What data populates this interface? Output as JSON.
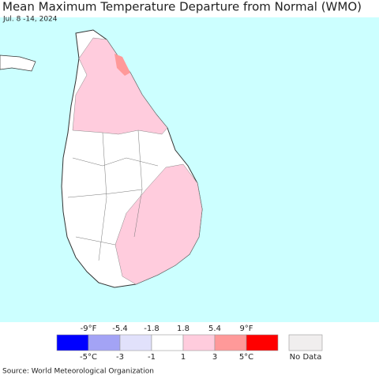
{
  "header": {
    "title": "Mean Maximum Temperature Departure from Normal (WMO)",
    "subtitle": "Jul. 8 -14, 2024"
  },
  "legend": {
    "colors": [
      "#0000ff",
      "#a3a3f5",
      "#e1e1fb",
      "#ffffff",
      "#ffccdd",
      "#ff9999",
      "#ff0000"
    ],
    "top_labels": [
      "-9°F",
      "-5.4",
      "-1.8",
      "1.8",
      "5.4",
      "9°F"
    ],
    "bottom_labels": [
      "-5°C",
      "-3",
      "-1",
      "1",
      "3",
      "5°C"
    ],
    "no_data": {
      "label": "No Data",
      "color": "#f0eeee"
    }
  },
  "footer": {
    "source": "Source: World Meteorological Organization"
  }
}
